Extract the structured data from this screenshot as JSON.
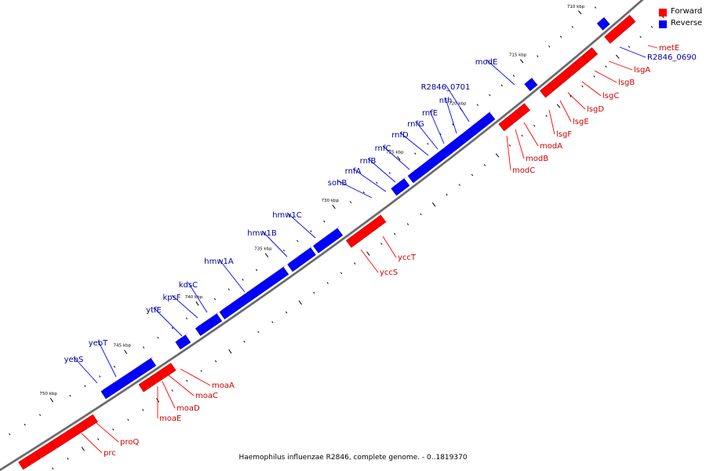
{
  "caption": "Haemophilus influenzae R2846, complete genome. - 0..1819370",
  "legend": [
    {
      "label": "Forward",
      "color": "#ff0000"
    },
    {
      "label": "Reverse",
      "color": "#0000ff"
    }
  ],
  "colors": {
    "forward": "#ff0000",
    "forward_label": "#cc0000",
    "reverse": "#0000ff",
    "reverse_label": "#000099",
    "backbone": "#888888",
    "tick": "#000000"
  },
  "ticks": [
    {
      "label": "710 kbp",
      "kbp": 710
    },
    {
      "label": "715 kbp",
      "kbp": 715
    },
    {
      "label": "720 kbp",
      "kbp": 720
    },
    {
      "label": "725 kbp",
      "kbp": 725
    },
    {
      "label": "730 kbp",
      "kbp": 730
    },
    {
      "label": "735 kbp",
      "kbp": 735
    },
    {
      "label": "740 kbp",
      "kbp": 740
    },
    {
      "label": "745 kbp",
      "kbp": 745
    },
    {
      "label": "750 kbp",
      "kbp": 750
    }
  ],
  "genes": [
    {
      "name": "metE",
      "strand": "forward",
      "start": 707.6,
      "end": 709.8
    },
    {
      "name": "R2846_0690",
      "strand": "reverse",
      "start": 709.0,
      "end": 709.6
    },
    {
      "name": "lsgA",
      "strand": "forward",
      "start": 710.9,
      "end": 711.7
    },
    {
      "name": "lsgB",
      "strand": "forward",
      "start": 711.7,
      "end": 712.4
    },
    {
      "name": "lsgC",
      "strand": "forward",
      "start": 712.4,
      "end": 713.2
    },
    {
      "name": "lsgD",
      "strand": "forward",
      "start": 713.2,
      "end": 714.0
    },
    {
      "name": "lsgE",
      "strand": "forward",
      "start": 714.0,
      "end": 714.6
    },
    {
      "name": "lsgF",
      "strand": "forward",
      "start": 714.6,
      "end": 715.3
    },
    {
      "name": "modE",
      "strand": "reverse",
      "start": 715.2,
      "end": 715.8
    },
    {
      "name": "modA",
      "strand": "forward",
      "start": 716.6,
      "end": 717.3
    },
    {
      "name": "modB",
      "strand": "forward",
      "start": 717.3,
      "end": 718.0
    },
    {
      "name": "modC",
      "strand": "forward",
      "start": 718.0,
      "end": 718.7
    },
    {
      "name": "R2846_0701",
      "strand": "reverse",
      "start": 718.7,
      "end": 719.6
    },
    {
      "name": "nth",
      "strand": "reverse",
      "start": 719.6,
      "end": 720.3
    },
    {
      "name": "rnfE",
      "strand": "reverse",
      "start": 720.3,
      "end": 720.9
    },
    {
      "name": "rnfG",
      "strand": "reverse",
      "start": 720.9,
      "end": 721.5
    },
    {
      "name": "rnfD",
      "strand": "reverse",
      "start": 721.5,
      "end": 722.5
    },
    {
      "name": "rnfC",
      "strand": "reverse",
      "start": 722.5,
      "end": 724.0
    },
    {
      "name": "rnfB",
      "strand": "reverse",
      "start": 724.0,
      "end": 724.6
    },
    {
      "name": "rnfA",
      "strand": "reverse",
      "start": 724.6,
      "end": 725.2
    },
    {
      "name": "sohB",
      "strand": "reverse",
      "start": 725.5,
      "end": 726.5
    },
    {
      "name": "yccT",
      "strand": "forward",
      "start": 728.0,
      "end": 728.6
    },
    {
      "name": "yccS",
      "strand": "forward",
      "start": 728.6,
      "end": 730.6
    },
    {
      "name": "hmw1C",
      "strand": "reverse",
      "start": 730.6,
      "end": 732.4
    },
    {
      "name": "hmw1B",
      "strand": "reverse",
      "start": 732.6,
      "end": 734.3
    },
    {
      "name": "hmw1A",
      "strand": "reverse",
      "start": 734.6,
      "end": 739.2
    },
    {
      "name": "kdsC",
      "strand": "reverse",
      "start": 739.4,
      "end": 739.9
    },
    {
      "name": "kpsF",
      "strand": "reverse",
      "start": 739.9,
      "end": 740.9
    },
    {
      "name": "ytfE",
      "strand": "reverse",
      "start": 741.6,
      "end": 742.3
    },
    {
      "name": "moaA",
      "strand": "forward",
      "start": 743.2,
      "end": 744.1
    },
    {
      "name": "moaC",
      "strand": "forward",
      "start": 744.1,
      "end": 744.6
    },
    {
      "name": "moaD",
      "strand": "forward",
      "start": 744.6,
      "end": 744.9
    },
    {
      "name": "moaE",
      "strand": "forward",
      "start": 744.9,
      "end": 745.4
    },
    {
      "name": "yebT",
      "strand": "reverse",
      "start": 744.0,
      "end": 746.5
    },
    {
      "name": "yebS",
      "strand": "reverse",
      "start": 746.5,
      "end": 747.4
    },
    {
      "name": "proQ",
      "strand": "forward",
      "start": 748.5,
      "end": 749.2
    },
    {
      "name": "prc",
      "strand": "forward",
      "start": 749.2,
      "end": 751.3
    },
    {
      "name": "",
      "strand": "forward",
      "start": 751.3,
      "end": 752.3
    },
    {
      "name": "",
      "strand": "forward",
      "start": 752.3,
      "end": 752.9
    },
    {
      "name": "",
      "strand": "forward",
      "start": 752.9,
      "end": 753.4
    }
  ]
}
